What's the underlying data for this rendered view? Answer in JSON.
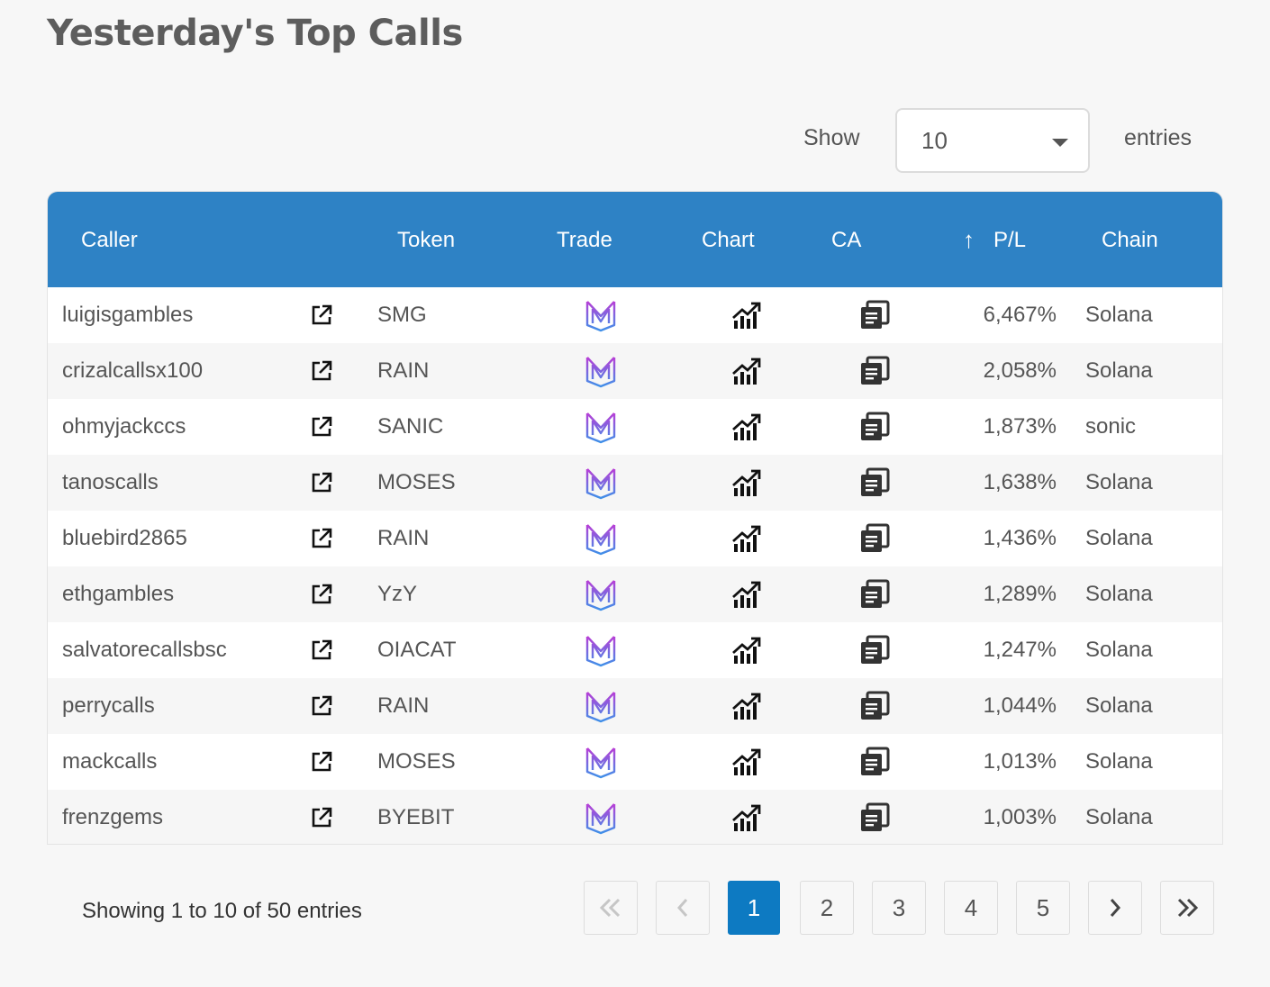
{
  "page": {
    "title": "Yesterday's Top Calls"
  },
  "length_menu": {
    "show_label": "Show",
    "value": "10",
    "entries_label": "entries"
  },
  "table": {
    "columns": [
      "Caller",
      "Token",
      "Trade",
      "Chart",
      "CA",
      "P/L",
      "Chain"
    ],
    "sort_indicator": "↑",
    "rows": [
      {
        "caller": "luigisgambles",
        "token": "SMG",
        "pl": "6,467%",
        "chain": "Solana"
      },
      {
        "caller": "crizalcallsx100",
        "token": "RAIN",
        "pl": "2,058%",
        "chain": "Solana"
      },
      {
        "caller": "ohmyjackccs",
        "token": "SANIC",
        "pl": "1,873%",
        "chain": "sonic"
      },
      {
        "caller": "tanoscalls",
        "token": "MOSES",
        "pl": "1,638%",
        "chain": "Solana"
      },
      {
        "caller": "bluebird2865",
        "token": "RAIN",
        "pl": "1,436%",
        "chain": "Solana"
      },
      {
        "caller": "ethgambles",
        "token": "YzY",
        "pl": "1,289%",
        "chain": "Solana"
      },
      {
        "caller": "salvatorecallsbsc",
        "token": "OIACAT",
        "pl": "1,247%",
        "chain": "Solana"
      },
      {
        "caller": "perrycalls",
        "token": "RAIN",
        "pl": "1,044%",
        "chain": "Solana"
      },
      {
        "caller": "mackcalls",
        "token": "MOSES",
        "pl": "1,013%",
        "chain": "Solana"
      },
      {
        "caller": "frenzgems",
        "token": "BYEBIT",
        "pl": "1,003%",
        "chain": "Solana"
      }
    ],
    "icons": {
      "caller_link": "external-link-icon",
      "trade": "trade-logo-icon",
      "chart": "chart-icon",
      "ca": "copy-icon"
    }
  },
  "footer": {
    "info": "Showing 1 to 10 of 50 entries",
    "pages": [
      "1",
      "2",
      "3",
      "4",
      "5"
    ],
    "active_page": "1",
    "nav_icons": [
      "first-page-icon",
      "previous-page-icon",
      "next-page-icon",
      "last-page-icon"
    ]
  },
  "colors": {
    "header": "#2e82c5",
    "active_page": "#0d7ac2"
  }
}
